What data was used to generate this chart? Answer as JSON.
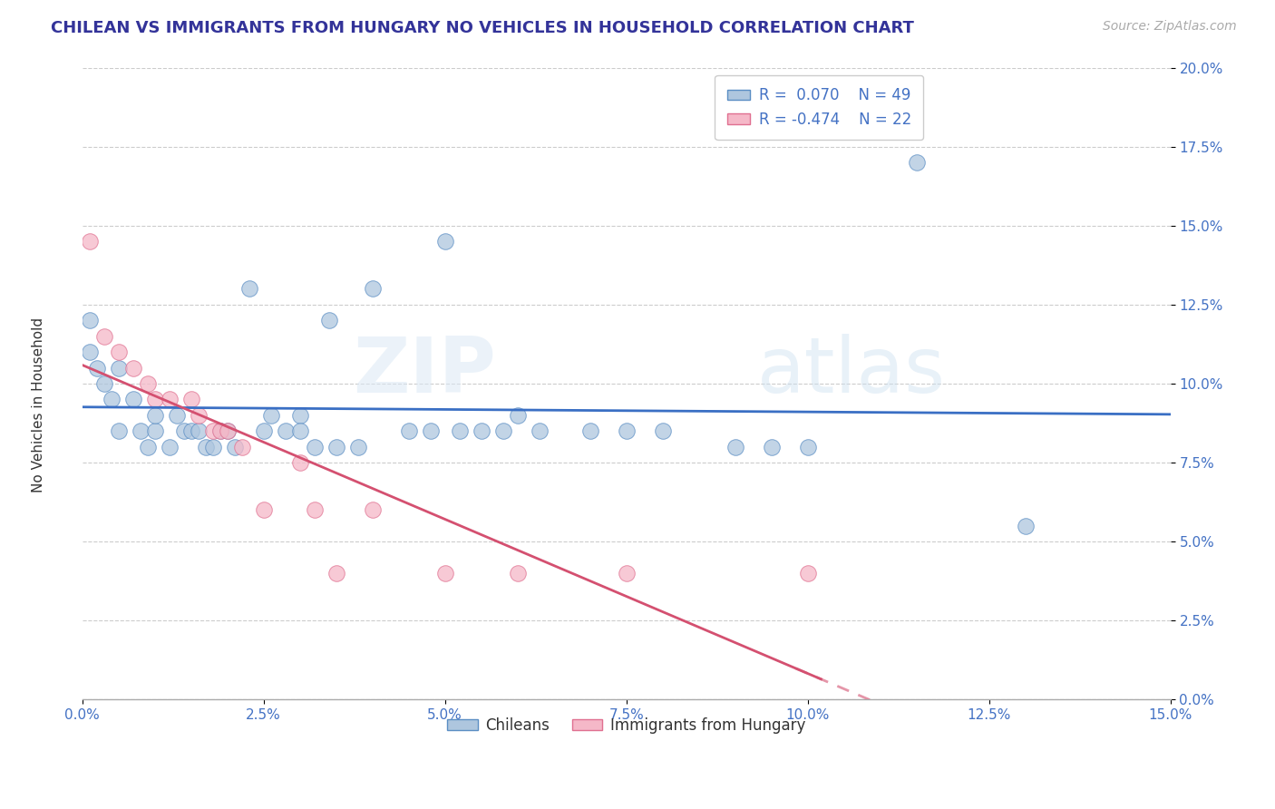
{
  "title": "CHILEAN VS IMMIGRANTS FROM HUNGARY NO VEHICLES IN HOUSEHOLD CORRELATION CHART",
  "source": "Source: ZipAtlas.com",
  "xlabel_ticks": [
    "0.0%",
    "2.5%",
    "5.0%",
    "7.5%",
    "10.0%",
    "12.5%",
    "15.0%"
  ],
  "ylabel_ticks": [
    "0.0%",
    "2.5%",
    "5.0%",
    "7.5%",
    "10.0%",
    "12.5%",
    "15.0%",
    "17.5%",
    "20.0%"
  ],
  "ylabel": "No Vehicles in Household",
  "xlim": [
    0.0,
    0.15
  ],
  "ylim": [
    0.0,
    0.2
  ],
  "chilean_r": 0.07,
  "chilean_n": 49,
  "hungary_r": -0.474,
  "hungary_n": 22,
  "chilean_color": "#aec6de",
  "hungary_color": "#f5b8c8",
  "chilean_edge_color": "#5b8ec4",
  "hungary_edge_color": "#e07090",
  "chilean_line_color": "#3a6fc4",
  "hungary_line_color": "#d45070",
  "legend_label_chileans": "Chileans",
  "legend_label_hungary": "Immigrants from Hungary",
  "chilean_points": [
    [
      0.001,
      0.12
    ],
    [
      0.001,
      0.11
    ],
    [
      0.002,
      0.105
    ],
    [
      0.003,
      0.1
    ],
    [
      0.004,
      0.095
    ],
    [
      0.005,
      0.105
    ],
    [
      0.005,
      0.085
    ],
    [
      0.007,
      0.095
    ],
    [
      0.008,
      0.085
    ],
    [
      0.009,
      0.08
    ],
    [
      0.01,
      0.085
    ],
    [
      0.01,
      0.09
    ],
    [
      0.012,
      0.08
    ],
    [
      0.013,
      0.09
    ],
    [
      0.014,
      0.085
    ],
    [
      0.015,
      0.085
    ],
    [
      0.016,
      0.085
    ],
    [
      0.017,
      0.08
    ],
    [
      0.018,
      0.08
    ],
    [
      0.019,
      0.085
    ],
    [
      0.02,
      0.085
    ],
    [
      0.021,
      0.08
    ],
    [
      0.023,
      0.13
    ],
    [
      0.025,
      0.085
    ],
    [
      0.026,
      0.09
    ],
    [
      0.028,
      0.085
    ],
    [
      0.03,
      0.09
    ],
    [
      0.03,
      0.085
    ],
    [
      0.032,
      0.08
    ],
    [
      0.034,
      0.12
    ],
    [
      0.035,
      0.08
    ],
    [
      0.038,
      0.08
    ],
    [
      0.04,
      0.13
    ],
    [
      0.045,
      0.085
    ],
    [
      0.048,
      0.085
    ],
    [
      0.05,
      0.145
    ],
    [
      0.052,
      0.085
    ],
    [
      0.055,
      0.085
    ],
    [
      0.058,
      0.085
    ],
    [
      0.06,
      0.09
    ],
    [
      0.063,
      0.085
    ],
    [
      0.07,
      0.085
    ],
    [
      0.075,
      0.085
    ],
    [
      0.08,
      0.085
    ],
    [
      0.09,
      0.08
    ],
    [
      0.095,
      0.08
    ],
    [
      0.1,
      0.08
    ],
    [
      0.115,
      0.17
    ],
    [
      0.13,
      0.055
    ]
  ],
  "hungary_points": [
    [
      0.001,
      0.145
    ],
    [
      0.003,
      0.115
    ],
    [
      0.005,
      0.11
    ],
    [
      0.007,
      0.105
    ],
    [
      0.009,
      0.1
    ],
    [
      0.01,
      0.095
    ],
    [
      0.012,
      0.095
    ],
    [
      0.015,
      0.095
    ],
    [
      0.016,
      0.09
    ],
    [
      0.018,
      0.085
    ],
    [
      0.019,
      0.085
    ],
    [
      0.02,
      0.085
    ],
    [
      0.022,
      0.08
    ],
    [
      0.025,
      0.06
    ],
    [
      0.03,
      0.075
    ],
    [
      0.032,
      0.06
    ],
    [
      0.035,
      0.04
    ],
    [
      0.04,
      0.06
    ],
    [
      0.05,
      0.04
    ],
    [
      0.06,
      0.04
    ],
    [
      0.075,
      0.04
    ],
    [
      0.1,
      0.04
    ]
  ]
}
